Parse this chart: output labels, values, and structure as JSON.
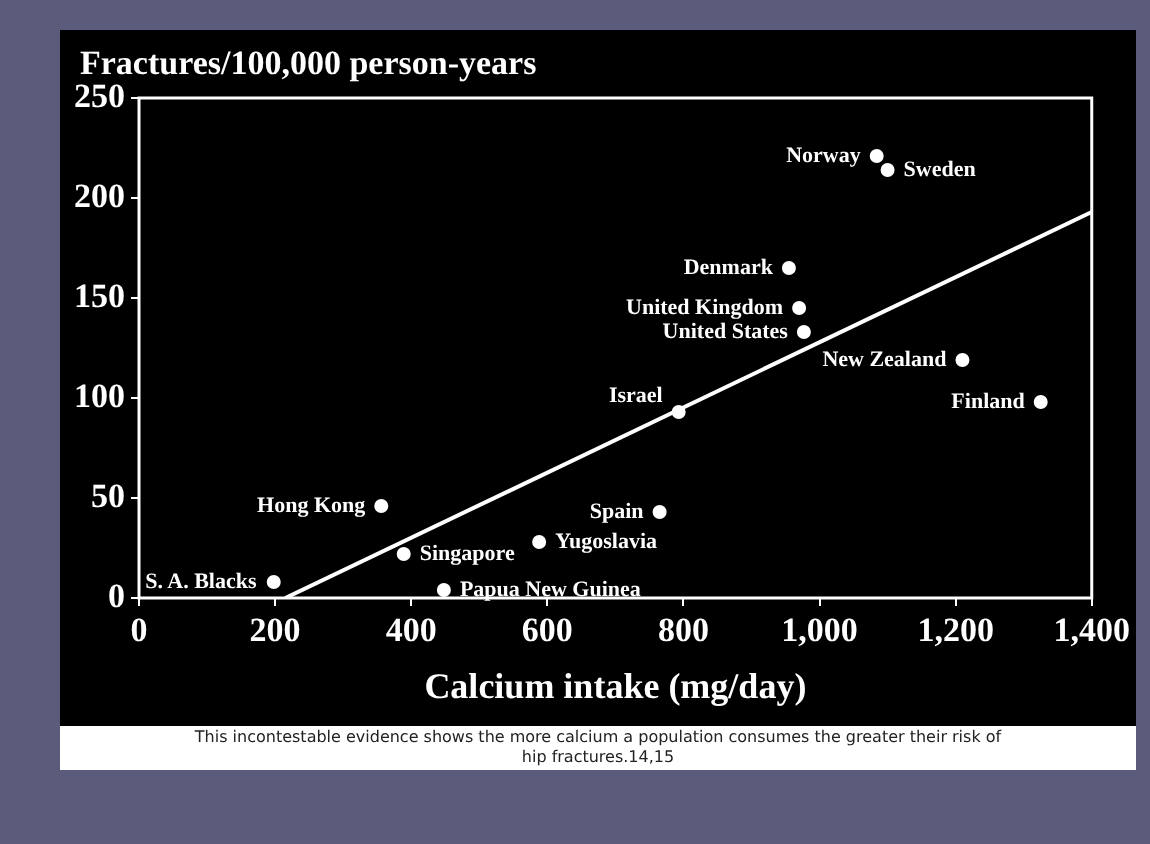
{
  "chart_data": {
    "type": "scatter",
    "ylabel": "Fractures/100,000 person-years",
    "xlabel": "Calcium intake (mg/day)",
    "xlim": [
      0,
      1400
    ],
    "xticks": [
      0,
      200,
      400,
      600,
      800,
      {
        "value": 1000,
        "label": "1,000"
      },
      {
        "value": 1200,
        "label": "1,200"
      },
      {
        "value": 1400,
        "label": "1,400"
      }
    ],
    "ylim": [
      0,
      250
    ],
    "yticks": [
      0,
      50,
      100,
      150,
      200,
      250
    ],
    "grid": false,
    "legend": false,
    "series": [
      {
        "type": "scatter",
        "marker": "circle",
        "color": "#ffffff",
        "x": [
          198,
          356,
          389,
          448,
          588,
          765,
          793,
          955,
          970,
          977,
          1084,
          1100,
          1210,
          1325
        ],
        "values": [
          8,
          46,
          22,
          4,
          28,
          43,
          93,
          165,
          145,
          133,
          221,
          214,
          119,
          98
        ]
      },
      {
        "type": "line",
        "color": "#ffffff",
        "line_style": "solid",
        "x": [
          215,
          1400
        ],
        "values": [
          0,
          193
        ]
      }
    ],
    "annotations": [
      {
        "text": "S. A. Blacks",
        "x": 198,
        "y": 8
      },
      {
        "text": "Hong Kong",
        "x": 356,
        "y": 46
      },
      {
        "text": "Singapore",
        "x": 389,
        "y": 22
      },
      {
        "text": "Papua New Guinea",
        "x": 448,
        "y": 4
      },
      {
        "text": "Yugoslavia",
        "x": 588,
        "y": 28
      },
      {
        "text": "Spain",
        "x": 765,
        "y": 43
      },
      {
        "text": "Israel",
        "x": 793,
        "y": 93
      },
      {
        "text": "Denmark",
        "x": 955,
        "y": 165
      },
      {
        "text": "United Kingdom",
        "x": 970,
        "y": 145
      },
      {
        "text": "United States",
        "x": 977,
        "y": 133
      },
      {
        "text": "Norway",
        "x": 1084,
        "y": 221
      },
      {
        "text": "Sweden",
        "x": 1100,
        "y": 214
      },
      {
        "text": "New Zealand",
        "x": 1210,
        "y": 119
      },
      {
        "text": "Finland",
        "x": 1325,
        "y": 98
      },
      "This incontestable evidence shows the more calcium a population consumes the greater their risk of hip fractures.14,15"
    ]
  }
}
